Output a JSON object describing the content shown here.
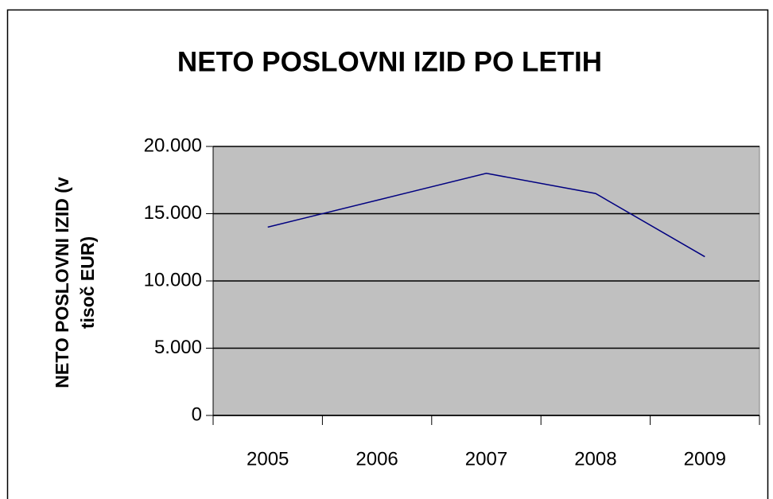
{
  "chart_data": {
    "type": "line",
    "title": "NETO POSLOVNI IZID PO LETIH",
    "ylabel": [
      "NETO POSLOVNI IZID (v",
      "tisoč EUR)"
    ],
    "categories": [
      "2005",
      "2006",
      "2007",
      "2008",
      "2009"
    ],
    "series": [
      {
        "color": "#000080",
        "values": [
          14000,
          16000,
          18000,
          16500,
          11800
        ]
      }
    ],
    "ylim": [
      0,
      20000
    ],
    "yticks": [
      0,
      {
        "value": 5000,
        "label": "5.000"
      },
      {
        "value": 10000,
        "label": "10.000"
      },
      {
        "value": 15000,
        "label": "15.000"
      },
      {
        "value": 20000,
        "label": "20.000"
      }
    ],
    "grid": true
  }
}
